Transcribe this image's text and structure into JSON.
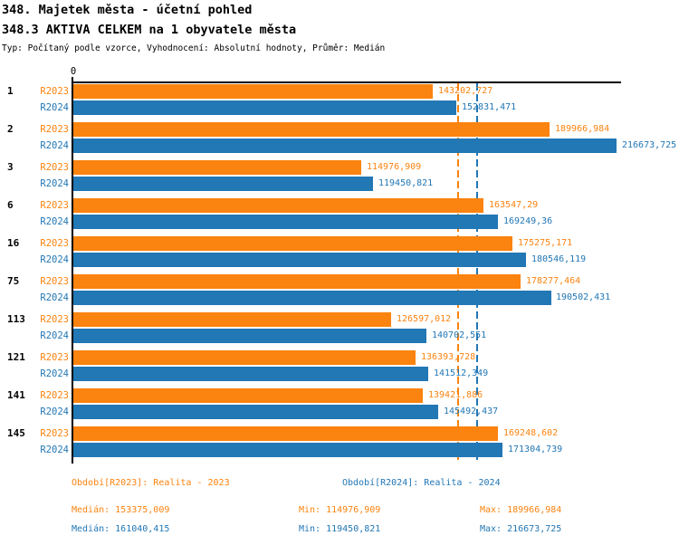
{
  "header": {
    "title": "348. Majetek města - účetní pohled",
    "subtitle": "348.3 AKTIVA CELKEM na 1 obyvatele města",
    "meta": "Typ: Počítaný podle vzorce, Vyhodnocení: Absolutní hodnoty, Průměr: Medián"
  },
  "colors": {
    "r2023": "#fb830f",
    "r2024": "#2277b5",
    "axis": "#000000",
    "background": "#ffffff"
  },
  "axis": {
    "zero_label": "0"
  },
  "chart_data": {
    "type": "bar",
    "orientation": "horizontal",
    "title": "348.3 AKTIVA CELKEM na 1 obyvatele města",
    "categories": [
      "1",
      "2",
      "3",
      "6",
      "16",
      "75",
      "113",
      "121",
      "141",
      "145"
    ],
    "series": [
      {
        "name": "R2023",
        "color": "#fb830f",
        "values": [
          143202.727,
          189966.984,
          114976.909,
          163547.29,
          175275.171,
          178277.464,
          126597.012,
          136393.728,
          139421.886,
          169248.602
        ],
        "labels": [
          "143202,727",
          "189966,984",
          "114976,909",
          "163547,29",
          "175275,171",
          "178277,464",
          "126597,012",
          "136393,728",
          "139421,886",
          "169248,602"
        ]
      },
      {
        "name": "R2024",
        "color": "#2277b5",
        "values": [
          152831.471,
          216673.725,
          119450.821,
          169249.36,
          180546.119,
          190502.431,
          140702.551,
          141512.349,
          145492.437,
          171304.739
        ],
        "labels": [
          "152831,471",
          "216673,725",
          "119450,821",
          "169249,36",
          "180546,119",
          "190502,431",
          "140702,551",
          "141512,349",
          "145492,437",
          "171304,739"
        ]
      }
    ],
    "medians": {
      "r2023": 153375.009,
      "r2024": 161040.415
    },
    "xlim": [
      0,
      218500
    ],
    "grid": false,
    "legend_position": "bottom"
  },
  "footer": {
    "legend_2023": "Období[R2023]: Realita - 2023",
    "legend_2024": "Období[R2024]: Realita - 2024",
    "stats_2023": {
      "median": "Medián: 153375,009",
      "min": "Min: 114976,909",
      "max": "Max: 189966,984"
    },
    "stats_2024": {
      "median": "Medián: 161040,415",
      "min": "Min: 119450,821",
      "max": "Max: 216673,725"
    }
  }
}
